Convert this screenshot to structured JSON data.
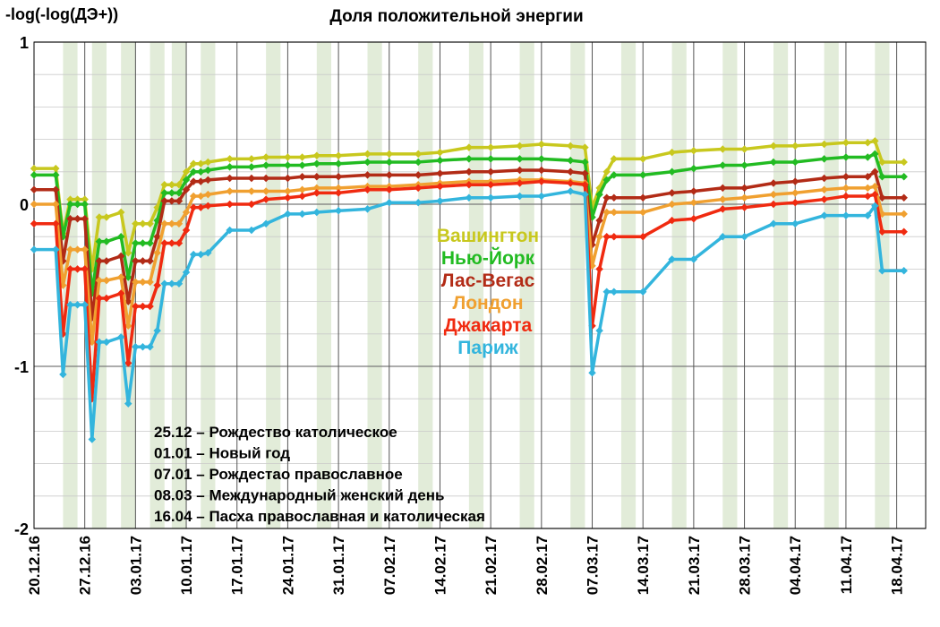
{
  "chart_data": {
    "type": "line",
    "title": "Доля положительной энергии",
    "ylabel": "-log(-log(ДЭ+))",
    "ylim": [
      -2,
      1
    ],
    "yticks": [
      1,
      0,
      -1,
      -2
    ],
    "ytick_labels": [
      "1",
      "0",
      "-1",
      "-2"
    ],
    "xlim": [
      "2016-12-20",
      "2017-04-22"
    ],
    "xticks": [
      "2016-12-20",
      "2016-12-27",
      "2017-01-03",
      "2017-01-10",
      "2017-01-17",
      "2017-01-24",
      "2017-01-31",
      "2017-02-07",
      "2017-02-14",
      "2017-02-21",
      "2017-02-28",
      "2017-03-07",
      "2017-03-14",
      "2017-03-21",
      "2017-03-28",
      "2017-04-04",
      "2017-04-11",
      "2017-04-18"
    ],
    "xtick_labels": [
      "20.12.16",
      "27.12.16",
      "03.01.17",
      "10.01.17",
      "17.01.17",
      "24.01.17",
      "31.01.17",
      "07.02.17",
      "14.02.17",
      "21.02.17",
      "28.02.17",
      "07.03.17",
      "14.03.17",
      "21.03.17",
      "28.03.17",
      "04.04.17",
      "11.04.17",
      "18.04.17"
    ],
    "grid": true,
    "weekend_shading": [
      [
        "2016-12-24",
        "2016-12-26"
      ],
      [
        "2016-12-28",
        "2016-12-30"
      ],
      [
        "2017-01-01",
        "2017-01-03"
      ],
      [
        "2017-01-05",
        "2017-01-07"
      ],
      [
        "2017-01-08",
        "2017-01-10"
      ],
      [
        "2017-01-12",
        "2017-01-14"
      ],
      [
        "2017-01-21",
        "2017-01-23"
      ],
      [
        "2017-01-28",
        "2017-01-30"
      ],
      [
        "2017-02-04",
        "2017-02-06"
      ],
      [
        "2017-02-11",
        "2017-02-13"
      ],
      [
        "2017-02-18",
        "2017-02-20"
      ],
      [
        "2017-02-25",
        "2017-02-27"
      ],
      [
        "2017-03-04",
        "2017-03-06"
      ],
      [
        "2017-03-11",
        "2017-03-13"
      ],
      [
        "2017-03-18",
        "2017-03-20"
      ],
      [
        "2017-03-25",
        "2017-03-27"
      ],
      [
        "2017-04-01",
        "2017-04-03"
      ],
      [
        "2017-04-08",
        "2017-04-10"
      ],
      [
        "2017-04-15",
        "2017-04-17"
      ]
    ],
    "legend_position": "center",
    "series": [
      {
        "name": "Вашингтон",
        "color": "#c8c81e",
        "x": [
          "2016-12-20",
          "2016-12-23",
          "2016-12-24",
          "2016-12-25",
          "2016-12-26",
          "2016-12-27",
          "2016-12-28",
          "2016-12-29",
          "2016-12-30",
          "2017-01-01",
          "2017-01-02",
          "2017-01-03",
          "2017-01-04",
          "2017-01-05",
          "2017-01-06",
          "2017-01-07",
          "2017-01-08",
          "2017-01-09",
          "2017-01-10",
          "2017-01-11",
          "2017-01-12",
          "2017-01-13",
          "2017-01-16",
          "2017-01-19",
          "2017-01-21",
          "2017-01-24",
          "2017-01-26",
          "2017-01-28",
          "2017-01-31",
          "2017-02-04",
          "2017-02-07",
          "2017-02-11",
          "2017-02-14",
          "2017-02-18",
          "2017-02-21",
          "2017-02-25",
          "2017-02-28",
          "2017-03-04",
          "2017-03-06",
          "2017-03-07",
          "2017-03-08",
          "2017-03-09",
          "2017-03-10",
          "2017-03-14",
          "2017-03-18",
          "2017-03-21",
          "2017-03-25",
          "2017-03-28",
          "2017-04-01",
          "2017-04-04",
          "2017-04-08",
          "2017-04-11",
          "2017-04-14",
          "2017-04-15",
          "2017-04-16",
          "2017-04-19"
        ],
        "y": [
          0.22,
          0.22,
          -0.18,
          0.03,
          0.03,
          0.03,
          -0.4,
          -0.08,
          -0.08,
          -0.05,
          -0.3,
          -0.12,
          -0.12,
          -0.12,
          -0.02,
          0.12,
          0.12,
          0.12,
          0.2,
          0.25,
          0.25,
          0.26,
          0.28,
          0.28,
          0.29,
          0.29,
          0.29,
          0.3,
          0.3,
          0.31,
          0.31,
          0.31,
          0.32,
          0.35,
          0.35,
          0.36,
          0.37,
          0.36,
          0.35,
          -0.02,
          0.1,
          0.2,
          0.28,
          0.28,
          0.32,
          0.33,
          0.34,
          0.34,
          0.36,
          0.36,
          0.37,
          0.38,
          0.38,
          0.39,
          0.26,
          0.26
        ]
      },
      {
        "name": "Нью-Йорк",
        "color": "#22bb22",
        "x": [
          "2016-12-20",
          "2016-12-23",
          "2016-12-24",
          "2016-12-25",
          "2016-12-26",
          "2016-12-27",
          "2016-12-28",
          "2016-12-29",
          "2016-12-30",
          "2017-01-01",
          "2017-01-02",
          "2017-01-03",
          "2017-01-04",
          "2017-01-05",
          "2017-01-06",
          "2017-01-07",
          "2017-01-08",
          "2017-01-09",
          "2017-01-10",
          "2017-01-11",
          "2017-01-12",
          "2017-01-13",
          "2017-01-16",
          "2017-01-19",
          "2017-01-21",
          "2017-01-24",
          "2017-01-26",
          "2017-01-28",
          "2017-01-31",
          "2017-02-04",
          "2017-02-07",
          "2017-02-11",
          "2017-02-14",
          "2017-02-18",
          "2017-02-21",
          "2017-02-25",
          "2017-02-28",
          "2017-03-04",
          "2017-03-06",
          "2017-03-07",
          "2017-03-08",
          "2017-03-09",
          "2017-03-10",
          "2017-03-14",
          "2017-03-18",
          "2017-03-21",
          "2017-03-25",
          "2017-03-28",
          "2017-04-01",
          "2017-04-04",
          "2017-04-08",
          "2017-04-11",
          "2017-04-14",
          "2017-04-15",
          "2017-04-16",
          "2017-04-19"
        ],
        "y": [
          0.18,
          0.18,
          -0.2,
          0.0,
          0.0,
          0.0,
          -0.55,
          -0.23,
          -0.23,
          -0.2,
          -0.45,
          -0.24,
          -0.24,
          -0.24,
          -0.1,
          0.07,
          0.07,
          0.07,
          0.15,
          0.2,
          0.2,
          0.21,
          0.23,
          0.23,
          0.24,
          0.24,
          0.24,
          0.25,
          0.25,
          0.26,
          0.26,
          0.26,
          0.27,
          0.28,
          0.28,
          0.28,
          0.28,
          0.27,
          0.26,
          -0.08,
          0.06,
          0.15,
          0.18,
          0.18,
          0.2,
          0.22,
          0.24,
          0.24,
          0.26,
          0.26,
          0.28,
          0.29,
          0.29,
          0.31,
          0.17,
          0.17
        ]
      },
      {
        "name": "Лас-Вегас",
        "color": "#b22b16",
        "x": [
          "2016-12-20",
          "2016-12-23",
          "2016-12-24",
          "2016-12-25",
          "2016-12-26",
          "2016-12-27",
          "2016-12-28",
          "2016-12-29",
          "2016-12-30",
          "2017-01-01",
          "2017-01-02",
          "2017-01-03",
          "2017-01-04",
          "2017-01-05",
          "2017-01-06",
          "2017-01-07",
          "2017-01-08",
          "2017-01-09",
          "2017-01-10",
          "2017-01-11",
          "2017-01-12",
          "2017-01-13",
          "2017-01-16",
          "2017-01-19",
          "2017-01-21",
          "2017-01-24",
          "2017-01-26",
          "2017-01-28",
          "2017-01-31",
          "2017-02-04",
          "2017-02-07",
          "2017-02-11",
          "2017-02-14",
          "2017-02-18",
          "2017-02-21",
          "2017-02-25",
          "2017-02-28",
          "2017-03-04",
          "2017-03-06",
          "2017-03-07",
          "2017-03-08",
          "2017-03-09",
          "2017-03-10",
          "2017-03-14",
          "2017-03-18",
          "2017-03-21",
          "2017-03-25",
          "2017-03-28",
          "2017-04-01",
          "2017-04-04",
          "2017-04-08",
          "2017-04-11",
          "2017-04-14",
          "2017-04-15",
          "2017-04-16",
          "2017-04-19"
        ],
        "y": [
          0.09,
          0.09,
          -0.35,
          -0.09,
          -0.09,
          -0.09,
          -0.7,
          -0.35,
          -0.35,
          -0.32,
          -0.6,
          -0.35,
          -0.35,
          -0.35,
          -0.2,
          0.02,
          0.02,
          0.02,
          0.09,
          0.14,
          0.14,
          0.15,
          0.16,
          0.16,
          0.16,
          0.16,
          0.17,
          0.17,
          0.17,
          0.18,
          0.18,
          0.18,
          0.19,
          0.2,
          0.2,
          0.21,
          0.21,
          0.2,
          0.19,
          -0.25,
          -0.1,
          0.04,
          0.04,
          0.04,
          0.07,
          0.08,
          0.1,
          0.1,
          0.13,
          0.14,
          0.16,
          0.17,
          0.17,
          0.2,
          0.04,
          0.04
        ]
      },
      {
        "name": "Лондон",
        "color": "#f0a030",
        "x": [
          "2016-12-20",
          "2016-12-23",
          "2016-12-24",
          "2016-12-25",
          "2016-12-26",
          "2016-12-27",
          "2016-12-28",
          "2016-12-29",
          "2016-12-30",
          "2017-01-01",
          "2017-01-02",
          "2017-01-03",
          "2017-01-04",
          "2017-01-05",
          "2017-01-06",
          "2017-01-07",
          "2017-01-08",
          "2017-01-09",
          "2017-01-10",
          "2017-01-11",
          "2017-01-12",
          "2017-01-13",
          "2017-01-16",
          "2017-01-19",
          "2017-01-21",
          "2017-01-24",
          "2017-01-26",
          "2017-01-28",
          "2017-01-31",
          "2017-02-04",
          "2017-02-07",
          "2017-02-11",
          "2017-02-14",
          "2017-02-18",
          "2017-02-21",
          "2017-02-25",
          "2017-02-28",
          "2017-03-04",
          "2017-03-06",
          "2017-03-07",
          "2017-03-08",
          "2017-03-09",
          "2017-03-10",
          "2017-03-14",
          "2017-03-18",
          "2017-03-21",
          "2017-03-25",
          "2017-03-28",
          "2017-04-01",
          "2017-04-04",
          "2017-04-08",
          "2017-04-11",
          "2017-04-14",
          "2017-04-15",
          "2017-04-16",
          "2017-04-19"
        ],
        "y": [
          0.0,
          0.0,
          -0.5,
          -0.28,
          -0.28,
          -0.28,
          -0.85,
          -0.47,
          -0.47,
          -0.45,
          -0.75,
          -0.48,
          -0.48,
          -0.48,
          -0.3,
          -0.12,
          -0.12,
          -0.12,
          -0.05,
          0.05,
          0.05,
          0.06,
          0.08,
          0.08,
          0.08,
          0.08,
          0.09,
          0.1,
          0.1,
          0.11,
          0.11,
          0.12,
          0.13,
          0.14,
          0.14,
          0.15,
          0.15,
          0.14,
          0.13,
          -0.38,
          -0.2,
          -0.05,
          -0.05,
          -0.05,
          0.0,
          0.01,
          0.03,
          0.04,
          0.06,
          0.07,
          0.09,
          0.1,
          0.1,
          0.11,
          -0.06,
          -0.06
        ]
      },
      {
        "name": "Джакарта",
        "color": "#f02a10",
        "x": [
          "2016-12-20",
          "2016-12-23",
          "2016-12-24",
          "2016-12-25",
          "2016-12-26",
          "2016-12-27",
          "2016-12-28",
          "2016-12-29",
          "2016-12-30",
          "2017-01-01",
          "2017-01-02",
          "2017-01-03",
          "2017-01-04",
          "2017-01-05",
          "2017-01-06",
          "2017-01-07",
          "2017-01-08",
          "2017-01-09",
          "2017-01-10",
          "2017-01-11",
          "2017-01-12",
          "2017-01-13",
          "2017-01-16",
          "2017-01-19",
          "2017-01-21",
          "2017-01-24",
          "2017-01-26",
          "2017-01-28",
          "2017-01-31",
          "2017-02-04",
          "2017-02-07",
          "2017-02-11",
          "2017-02-14",
          "2017-02-18",
          "2017-02-21",
          "2017-02-25",
          "2017-02-28",
          "2017-03-04",
          "2017-03-06",
          "2017-03-07",
          "2017-03-08",
          "2017-03-09",
          "2017-03-10",
          "2017-03-14",
          "2017-03-18",
          "2017-03-21",
          "2017-03-25",
          "2017-03-28",
          "2017-04-01",
          "2017-04-04",
          "2017-04-08",
          "2017-04-11",
          "2017-04-14",
          "2017-04-15",
          "2017-04-16",
          "2017-04-19"
        ],
        "y": [
          -0.12,
          -0.12,
          -0.8,
          -0.4,
          -0.4,
          -0.4,
          -1.2,
          -0.58,
          -0.58,
          -0.55,
          -0.98,
          -0.63,
          -0.63,
          -0.63,
          -0.5,
          -0.24,
          -0.24,
          -0.24,
          -0.16,
          -0.02,
          -0.02,
          -0.01,
          0.0,
          0.0,
          0.03,
          0.04,
          0.05,
          0.07,
          0.07,
          0.09,
          0.09,
          0.1,
          0.11,
          0.12,
          0.12,
          0.13,
          0.14,
          0.13,
          0.12,
          -0.75,
          -0.4,
          -0.2,
          -0.2,
          -0.2,
          -0.1,
          -0.09,
          -0.03,
          -0.02,
          0.0,
          0.01,
          0.03,
          0.05,
          0.05,
          0.06,
          -0.17,
          -0.17
        ]
      },
      {
        "name": "Париж",
        "color": "#33b5dd",
        "x": [
          "2016-12-20",
          "2016-12-23",
          "2016-12-24",
          "2016-12-25",
          "2016-12-26",
          "2016-12-27",
          "2016-12-28",
          "2016-12-29",
          "2016-12-30",
          "2017-01-01",
          "2017-01-02",
          "2017-01-03",
          "2017-01-04",
          "2017-01-05",
          "2017-01-06",
          "2017-01-07",
          "2017-01-08",
          "2017-01-09",
          "2017-01-10",
          "2017-01-11",
          "2017-01-12",
          "2017-01-13",
          "2017-01-16",
          "2017-01-19",
          "2017-01-21",
          "2017-01-24",
          "2017-01-26",
          "2017-01-28",
          "2017-01-31",
          "2017-02-04",
          "2017-02-07",
          "2017-02-11",
          "2017-02-14",
          "2017-02-18",
          "2017-02-21",
          "2017-02-25",
          "2017-02-28",
          "2017-03-04",
          "2017-03-06",
          "2017-03-07",
          "2017-03-08",
          "2017-03-09",
          "2017-03-10",
          "2017-03-14",
          "2017-03-18",
          "2017-03-21",
          "2017-03-25",
          "2017-03-28",
          "2017-04-01",
          "2017-04-04",
          "2017-04-08",
          "2017-04-11",
          "2017-04-14",
          "2017-04-15",
          "2017-04-16",
          "2017-04-19"
        ],
        "y": [
          -0.28,
          -0.28,
          -1.05,
          -0.62,
          -0.62,
          -0.62,
          -1.45,
          -0.85,
          -0.85,
          -0.82,
          -1.23,
          -0.88,
          -0.88,
          -0.88,
          -0.78,
          -0.49,
          -0.49,
          -0.49,
          -0.42,
          -0.31,
          -0.31,
          -0.3,
          -0.16,
          -0.16,
          -0.12,
          -0.06,
          -0.06,
          -0.05,
          -0.04,
          -0.03,
          0.01,
          0.01,
          0.02,
          0.04,
          0.04,
          0.05,
          0.05,
          0.08,
          0.06,
          -1.04,
          -0.78,
          -0.54,
          -0.54,
          -0.54,
          -0.34,
          -0.34,
          -0.2,
          -0.2,
          -0.12,
          -0.12,
          -0.07,
          -0.07,
          -0.07,
          -0.01,
          -0.41,
          -0.41
        ]
      }
    ],
    "annotations": [
      "25.12 – Рождество католическое",
      "01.01 – Новый год",
      "07.01 – Рождестао православное",
      "08.03 – Международный женский день",
      "16.04 – Пасха православная и католическая"
    ]
  }
}
